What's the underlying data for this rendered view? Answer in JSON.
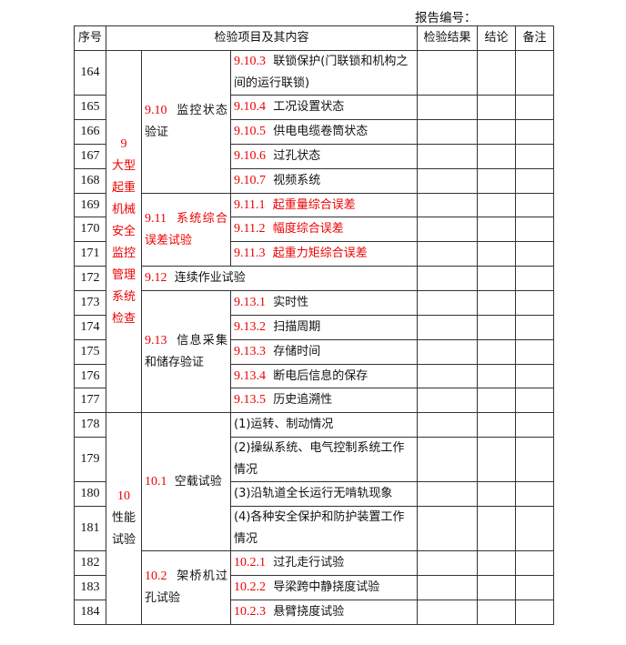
{
  "report_label": "报告编号：",
  "headers": {
    "no": "序号",
    "item": "检验项目及其内容",
    "result": "检验结果",
    "conclusion": "结论",
    "remark": "备注"
  },
  "cat9": {
    "num": "9",
    "label": "大型起重机械安全监控管理系统检查"
  },
  "cat10": {
    "num": "10",
    "label": "性能试验"
  },
  "groups": {
    "g910": {
      "code": "9.10",
      "label": "监控状态验证"
    },
    "g911": {
      "code": "9.11",
      "label": "系统综合误差试验"
    },
    "g912": {
      "code": "9.12",
      "label": "连续作业试验"
    },
    "g913": {
      "code": "9.13",
      "label": "信息采集和储存验证"
    },
    "g101": {
      "code": "10.1",
      "label": "空载试验"
    },
    "g102": {
      "code": "10.2",
      "label": "架桥机过孔试验"
    }
  },
  "rows": [
    {
      "no": "164",
      "code": "9.10.3",
      "text": "联锁保护(门联锁和机构之间的运行联锁)"
    },
    {
      "no": "165",
      "code": "9.10.4",
      "text": "工况设置状态"
    },
    {
      "no": "166",
      "code": "9.10.5",
      "text": "供电电缆卷筒状态"
    },
    {
      "no": "167",
      "code": "9.10.6",
      "text": "过孔状态"
    },
    {
      "no": "168",
      "code": "9.10.7",
      "text": "视频系统"
    },
    {
      "no": "169",
      "code": "9.11.1",
      "text": "起重量综合误差"
    },
    {
      "no": "170",
      "code": "9.11.2",
      "text": "幅度综合误差"
    },
    {
      "no": "171",
      "code": "9.11.3",
      "text": "起重力矩综合误差"
    },
    {
      "no": "172"
    },
    {
      "no": "173",
      "code": "9.13.1",
      "text": "实时性"
    },
    {
      "no": "174",
      "code": "9.13.2",
      "text": "扫描周期"
    },
    {
      "no": "175",
      "code": "9.13.3",
      "text": "存储时间"
    },
    {
      "no": "176",
      "code": "9.13.4",
      "text": "断电后信息的保存"
    },
    {
      "no": "177",
      "code": "9.13.5",
      "text": "历史追溯性"
    },
    {
      "no": "178",
      "code": "",
      "text": "(1)运转、制动情况"
    },
    {
      "no": "179",
      "code": "",
      "text": "(2)操纵系统、电气控制系统工作情况"
    },
    {
      "no": "180",
      "code": "",
      "text": "(3)沿轨道全长运行无啃轨现象"
    },
    {
      "no": "181",
      "code": "",
      "text": "(4)各种安全保护和防护装置工作情况"
    },
    {
      "no": "182",
      "code": "10.2.1",
      "text": "过孔走行试验"
    },
    {
      "no": "183",
      "code": "10.2.2",
      "text": "导梁跨中静挠度试验"
    },
    {
      "no": "184",
      "code": "10.2.3",
      "text": "悬臂挠度试验"
    }
  ]
}
